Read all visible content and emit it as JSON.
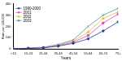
{
  "chart_data": {
    "type": "line",
    "x_label": "Years",
    "y_label": "Rate per 100,000",
    "categories": [
      "<15",
      "15-24",
      "25-34",
      "35-44",
      "45-54",
      "55-64",
      "65-74",
      "75+"
    ],
    "series": [
      {
        "name": "1990-2000",
        "color": "#1f3f9f",
        "marker": "diamond",
        "values": [
          2,
          5,
          10,
          25,
          50,
          90,
          160,
          240
        ]
      },
      {
        "name": "2001",
        "color": "#e040c0",
        "marker": "square",
        "values": [
          2,
          6,
          12,
          30,
          60,
          120,
          230,
          310
        ]
      },
      {
        "name": "2002",
        "color": "#e0c020",
        "marker": "triangle",
        "values": [
          2,
          6,
          14,
          35,
          70,
          150,
          270,
          330
        ]
      },
      {
        "name": "2003",
        "color": "#30a0a0",
        "marker": "x",
        "values": [
          3,
          7,
          15,
          40,
          80,
          200,
          300,
          360
        ]
      }
    ],
    "ylim": [
      0,
      400
    ],
    "yticks": [
      0,
      100,
      200,
      300,
      400
    ],
    "grid": false,
    "legend": "upper left"
  }
}
